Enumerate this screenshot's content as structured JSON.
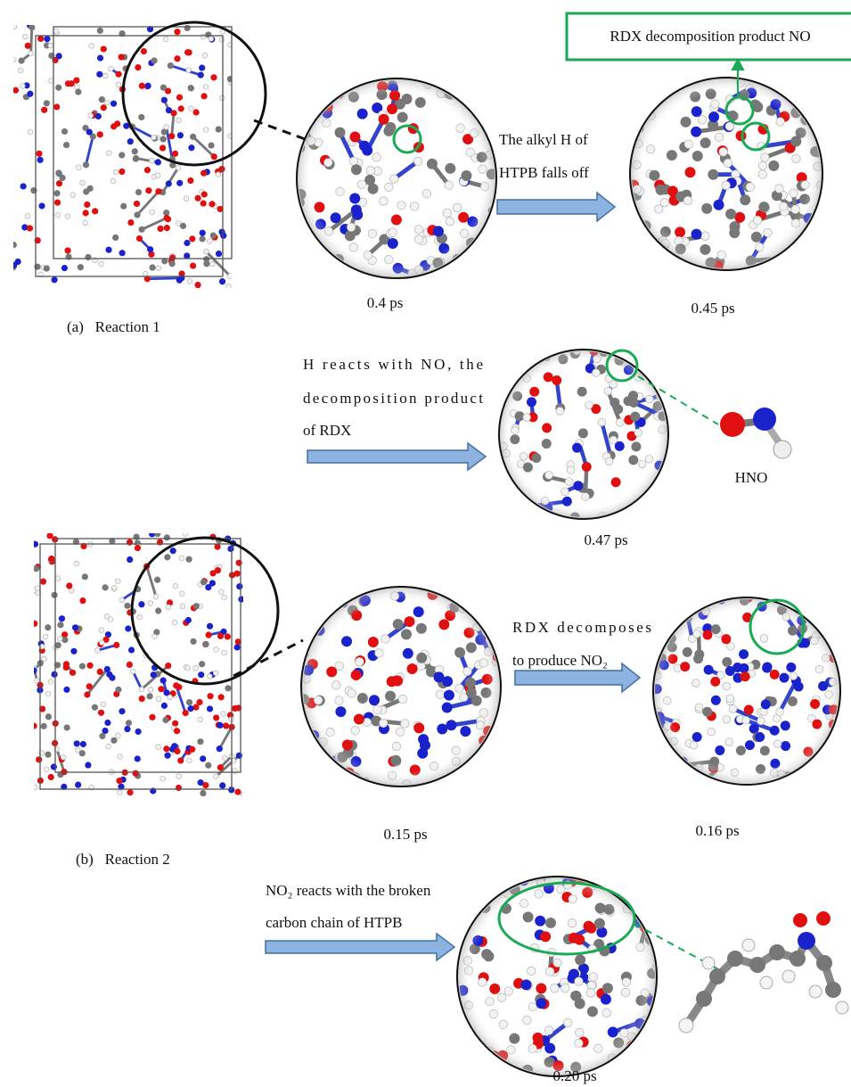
{
  "reaction_1": {
    "label": "(a)   Reaction 1",
    "note": "RDX decomposition product NO",
    "step_1": {
      "lines": [
        "The alkyl H of",
        "HTPB falls off"
      ]
    },
    "step_2": {
      "lines": [
        "H reacts with NO, the",
        "decomposition product",
        "of RDX"
      ]
    },
    "product": "HNO",
    "times": [
      "0.4 ps",
      "0.45 ps",
      "0.47 ps"
    ]
  },
  "reaction_2": {
    "label": "(b)   Reaction 2",
    "step_1": {
      "lines": [
        "RDX decomposes",
        "to produce NO₂"
      ]
    },
    "step_2": {
      "lines": [
        "NO₂ reacts with the broken",
        "carbon chain of HTPB"
      ]
    },
    "times": [
      "0.15 ps",
      "0.16 ps",
      "0.20 ps"
    ]
  }
}
